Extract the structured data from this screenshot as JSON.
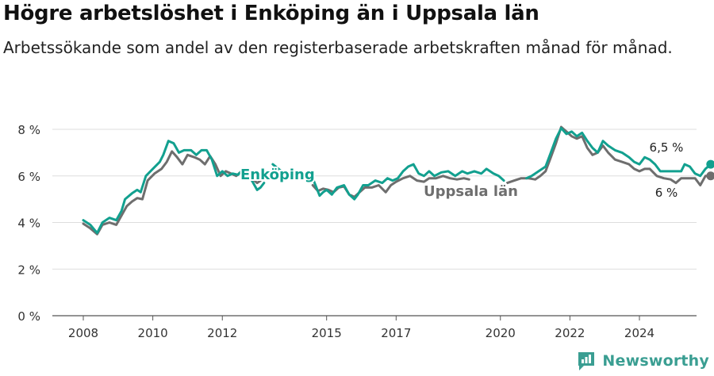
{
  "title": "Högre arbetslöshet i Enköping än i Uppsala län",
  "subtitle": "Arbetssökande som andel av den registerbaserade arbetskraften månad för månad.",
  "brand": {
    "name": "Newsworthy"
  },
  "colors": {
    "enkoping": "#12a08f",
    "uppsala": "#6e6e6e",
    "grid": "#dddddd",
    "axis": "#555555"
  },
  "chart_data": {
    "type": "line",
    "xlim": [
      2007.7,
      2025.6
    ],
    "ylim": [
      0,
      8
    ],
    "x_ticks": [
      2008,
      2010,
      2012,
      2015,
      2017,
      2020,
      2022,
      2024
    ],
    "x_tick_labels": [
      "2008",
      "2010",
      "2012",
      "2015",
      "2017",
      "2020",
      "2022",
      "2024"
    ],
    "y_ticks": [
      0,
      2,
      4,
      6,
      8
    ],
    "y_tick_labels": [
      "0 %",
      "2 %",
      "4 %",
      "6 %",
      "8 %"
    ],
    "grid": true,
    "series": [
      {
        "name": "Enköping",
        "color_key": "enkoping",
        "end_label": "6,5 %",
        "segments": [
          [
            [
              2008.0,
              4.1
            ],
            [
              2008.2,
              3.9
            ],
            [
              2008.4,
              3.55
            ],
            [
              2008.55,
              4.0
            ],
            [
              2008.75,
              4.2
            ],
            [
              2008.95,
              4.1
            ],
            [
              2009.1,
              4.5
            ],
            [
              2009.2,
              5.0
            ],
            [
              2009.4,
              5.25
            ],
            [
              2009.55,
              5.4
            ],
            [
              2009.65,
              5.3
            ],
            [
              2009.8,
              6.0
            ],
            [
              2010.0,
              6.3
            ],
            [
              2010.2,
              6.6
            ],
            [
              2010.3,
              6.9
            ],
            [
              2010.45,
              7.5
            ],
            [
              2010.6,
              7.4
            ],
            [
              2010.75,
              7.0
            ],
            [
              2010.9,
              7.1
            ],
            [
              2011.1,
              7.1
            ],
            [
              2011.25,
              6.9
            ],
            [
              2011.4,
              7.1
            ],
            [
              2011.55,
              7.1
            ],
            [
              2011.7,
              6.7
            ],
            [
              2011.85,
              6.0
            ],
            [
              2012.0,
              6.2
            ],
            [
              2012.15,
              6.0
            ],
            [
              2012.3,
              6.1
            ],
            [
              2012.45,
              6.05
            ],
            [
              2012.55,
              6.2
            ],
            [
              2012.7,
              6.1
            ],
            [
              2012.85,
              5.8
            ],
            [
              2013.0,
              5.4
            ],
            [
              2013.1,
              5.5
            ],
            [
              2013.2,
              5.7
            ]
          ],
          [
            [
              2013.45,
              6.5
            ],
            [
              2013.7,
              6.2
            ]
          ],
          [
            [
              2014.6,
              5.9
            ],
            [
              2014.8,
              5.15
            ],
            [
              2014.9,
              5.3
            ],
            [
              2015.0,
              5.4
            ],
            [
              2015.15,
              5.2
            ],
            [
              2015.3,
              5.5
            ],
            [
              2015.5,
              5.6
            ],
            [
              2015.65,
              5.2
            ],
            [
              2015.8,
              5.0
            ],
            [
              2015.9,
              5.2
            ],
            [
              2016.05,
              5.6
            ],
            [
              2016.2,
              5.6
            ],
            [
              2016.4,
              5.8
            ],
            [
              2016.6,
              5.7
            ],
            [
              2016.75,
              5.9
            ],
            [
              2016.9,
              5.8
            ],
            [
              2017.05,
              5.9
            ],
            [
              2017.2,
              6.2
            ],
            [
              2017.35,
              6.4
            ],
            [
              2017.5,
              6.5
            ],
            [
              2017.65,
              6.1
            ],
            [
              2017.8,
              6.0
            ],
            [
              2017.95,
              6.2
            ],
            [
              2018.1,
              6.0
            ],
            [
              2018.3,
              6.15
            ],
            [
              2018.5,
              6.2
            ],
            [
              2018.7,
              6.0
            ],
            [
              2018.9,
              6.2
            ],
            [
              2019.05,
              6.1
            ],
            [
              2019.25,
              6.2
            ],
            [
              2019.45,
              6.1
            ],
            [
              2019.6,
              6.3
            ],
            [
              2019.8,
              6.1
            ],
            [
              2019.95,
              6.0
            ],
            [
              2020.1,
              5.8
            ]
          ],
          [
            [
              2020.75,
              5.9
            ],
            [
              2020.9,
              6.0
            ],
            [
              2021.1,
              6.2
            ],
            [
              2021.3,
              6.4
            ],
            [
              2021.45,
              7.0
            ],
            [
              2021.6,
              7.6
            ],
            [
              2021.75,
              8.05
            ],
            [
              2021.9,
              7.8
            ],
            [
              2022.05,
              7.9
            ],
            [
              2022.2,
              7.7
            ],
            [
              2022.35,
              7.85
            ],
            [
              2022.5,
              7.5
            ],
            [
              2022.65,
              7.2
            ],
            [
              2022.8,
              7.0
            ],
            [
              2022.95,
              7.5
            ],
            [
              2023.1,
              7.3
            ],
            [
              2023.3,
              7.1
            ],
            [
              2023.5,
              7.0
            ],
            [
              2023.7,
              6.8
            ],
            [
              2023.85,
              6.6
            ],
            [
              2024.0,
              6.5
            ],
            [
              2024.15,
              6.8
            ],
            [
              2024.3,
              6.7
            ],
            [
              2024.45,
              6.5
            ],
            [
              2024.6,
              6.2
            ],
            [
              2024.8,
              6.2
            ],
            [
              2025.0,
              6.2
            ],
            [
              2025.2,
              6.2
            ],
            [
              2025.3,
              6.5
            ],
            [
              2025.45,
              6.4
            ],
            [
              2025.6,
              6.1
            ],
            [
              2025.75,
              6.0
            ],
            [
              2025.9,
              6.3
            ],
            [
              2026.05,
              6.5
            ]
          ]
        ]
      },
      {
        "name": "Uppsala län",
        "color_key": "uppsala",
        "end_label": "6 %",
        "segments": [
          [
            [
              2008.0,
              3.95
            ],
            [
              2008.2,
              3.75
            ],
            [
              2008.4,
              3.5
            ],
            [
              2008.55,
              3.9
            ],
            [
              2008.75,
              4.0
            ],
            [
              2008.95,
              3.9
            ],
            [
              2009.1,
              4.3
            ],
            [
              2009.25,
              4.7
            ],
            [
              2009.4,
              4.9
            ],
            [
              2009.55,
              5.05
            ],
            [
              2009.7,
              5.0
            ],
            [
              2009.85,
              5.8
            ],
            [
              2010.05,
              6.1
            ],
            [
              2010.25,
              6.3
            ],
            [
              2010.4,
              6.6
            ],
            [
              2010.55,
              7.05
            ],
            [
              2010.7,
              6.8
            ],
            [
              2010.85,
              6.5
            ],
            [
              2011.0,
              6.9
            ],
            [
              2011.2,
              6.8
            ],
            [
              2011.35,
              6.7
            ],
            [
              2011.5,
              6.5
            ],
            [
              2011.65,
              6.85
            ],
            [
              2011.8,
              6.5
            ],
            [
              2011.95,
              6.0
            ],
            [
              2012.1,
              6.2
            ],
            [
              2012.25,
              6.1
            ],
            [
              2012.4,
              6.0
            ],
            [
              2012.55,
              6.2
            ],
            [
              2012.7,
              6.1
            ],
            [
              2012.85,
              5.9
            ],
            [
              2013.0,
              5.7
            ],
            [
              2013.1,
              5.8
            ],
            [
              2013.2,
              6.1
            ]
          ],
          [
            [
              2014.6,
              5.6
            ],
            [
              2014.75,
              5.35
            ],
            [
              2014.9,
              5.45
            ],
            [
              2015.05,
              5.4
            ],
            [
              2015.2,
              5.3
            ],
            [
              2015.35,
              5.5
            ],
            [
              2015.5,
              5.55
            ],
            [
              2015.65,
              5.2
            ],
            [
              2015.8,
              5.1
            ],
            [
              2015.95,
              5.3
            ],
            [
              2016.1,
              5.5
            ],
            [
              2016.3,
              5.5
            ],
            [
              2016.5,
              5.6
            ],
            [
              2016.7,
              5.3
            ],
            [
              2016.85,
              5.6
            ],
            [
              2017.0,
              5.75
            ],
            [
              2017.2,
              5.9
            ],
            [
              2017.4,
              6.0
            ],
            [
              2017.6,
              5.8
            ],
            [
              2017.8,
              5.75
            ],
            [
              2017.95,
              5.9
            ],
            [
              2018.15,
              5.9
            ],
            [
              2018.35,
              6.0
            ],
            [
              2018.55,
              5.9
            ],
            [
              2018.75,
              5.85
            ],
            [
              2018.95,
              5.9
            ],
            [
              2019.1,
              5.85
            ]
          ],
          [
            [
              2020.2,
              5.7
            ],
            [
              2020.4,
              5.8
            ],
            [
              2020.6,
              5.9
            ],
            [
              2020.8,
              5.9
            ],
            [
              2021.0,
              5.85
            ],
            [
              2021.15,
              6.0
            ],
            [
              2021.3,
              6.2
            ],
            [
              2021.45,
              6.8
            ],
            [
              2021.6,
              7.4
            ],
            [
              2021.75,
              8.1
            ],
            [
              2021.9,
              7.9
            ],
            [
              2022.05,
              7.7
            ],
            [
              2022.2,
              7.6
            ],
            [
              2022.35,
              7.7
            ],
            [
              2022.5,
              7.2
            ],
            [
              2022.65,
              6.9
            ],
            [
              2022.8,
              7.0
            ],
            [
              2022.95,
              7.3
            ],
            [
              2023.1,
              7.0
            ],
            [
              2023.3,
              6.7
            ],
            [
              2023.5,
              6.6
            ],
            [
              2023.7,
              6.5
            ],
            [
              2023.85,
              6.3
            ],
            [
              2024.0,
              6.2
            ],
            [
              2024.15,
              6.3
            ],
            [
              2024.3,
              6.3
            ],
            [
              2024.5,
              6.0
            ],
            [
              2024.7,
              5.9
            ],
            [
              2024.9,
              5.85
            ],
            [
              2025.05,
              5.7
            ],
            [
              2025.2,
              5.9
            ],
            [
              2025.4,
              5.9
            ],
            [
              2025.6,
              5.9
            ],
            [
              2025.75,
              5.6
            ],
            [
              2025.9,
              6.0
            ],
            [
              2026.05,
              6.0
            ]
          ]
        ]
      }
    ]
  }
}
